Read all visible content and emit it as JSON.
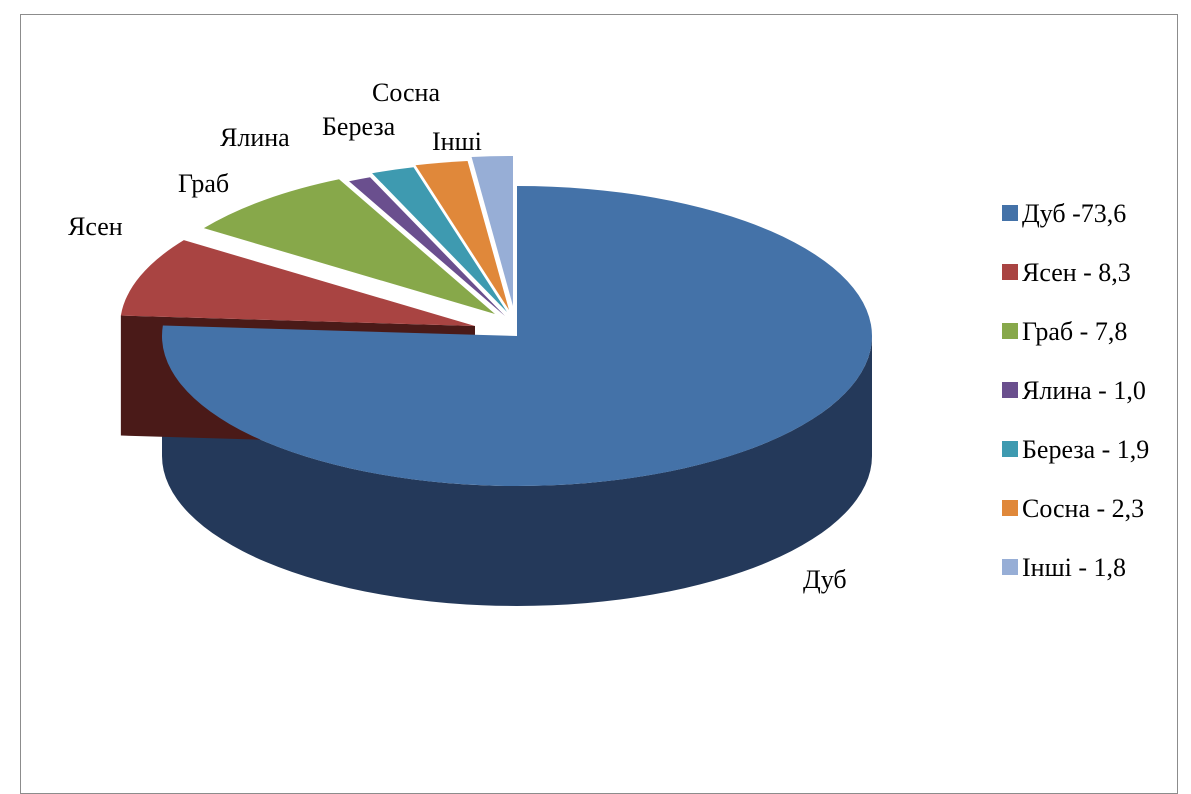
{
  "chart_data": {
    "type": "pie",
    "title": "",
    "legend_position": "right",
    "slices": [
      {
        "label": "Дуб",
        "legend": "Дуб -73,6",
        "value": 73.6,
        "color": "#4472a8",
        "dark": "#24395a"
      },
      {
        "label": "Ясен",
        "legend": "Ясен - 8,3",
        "value": 8.3,
        "color": "#a94442",
        "dark": "#4a1a18"
      },
      {
        "label": "Граб",
        "legend": "Граб - 7,8",
        "value": 7.8,
        "color": "#87a84a",
        "dark": "#3f5220"
      },
      {
        "label": "Ялина",
        "legend": "Ялина - 1,0",
        "value": 1.0,
        "color": "#6a4f8e",
        "dark": "#33244a"
      },
      {
        "label": "Береза",
        "legend": "Береза - 1,9",
        "value": 1.9,
        "color": "#3e9ab0",
        "dark": "#1c4a55"
      },
      {
        "label": "Сосна",
        "legend": "Сосна - 2,3",
        "value": 2.3,
        "color": "#e0883a",
        "dark": "#6e3f15"
      },
      {
        "label": "Інші",
        "legend": "Інші - 1,8",
        "value": 1.8,
        "color": "#97aed6",
        "dark": "#4a5a78"
      }
    ]
  }
}
